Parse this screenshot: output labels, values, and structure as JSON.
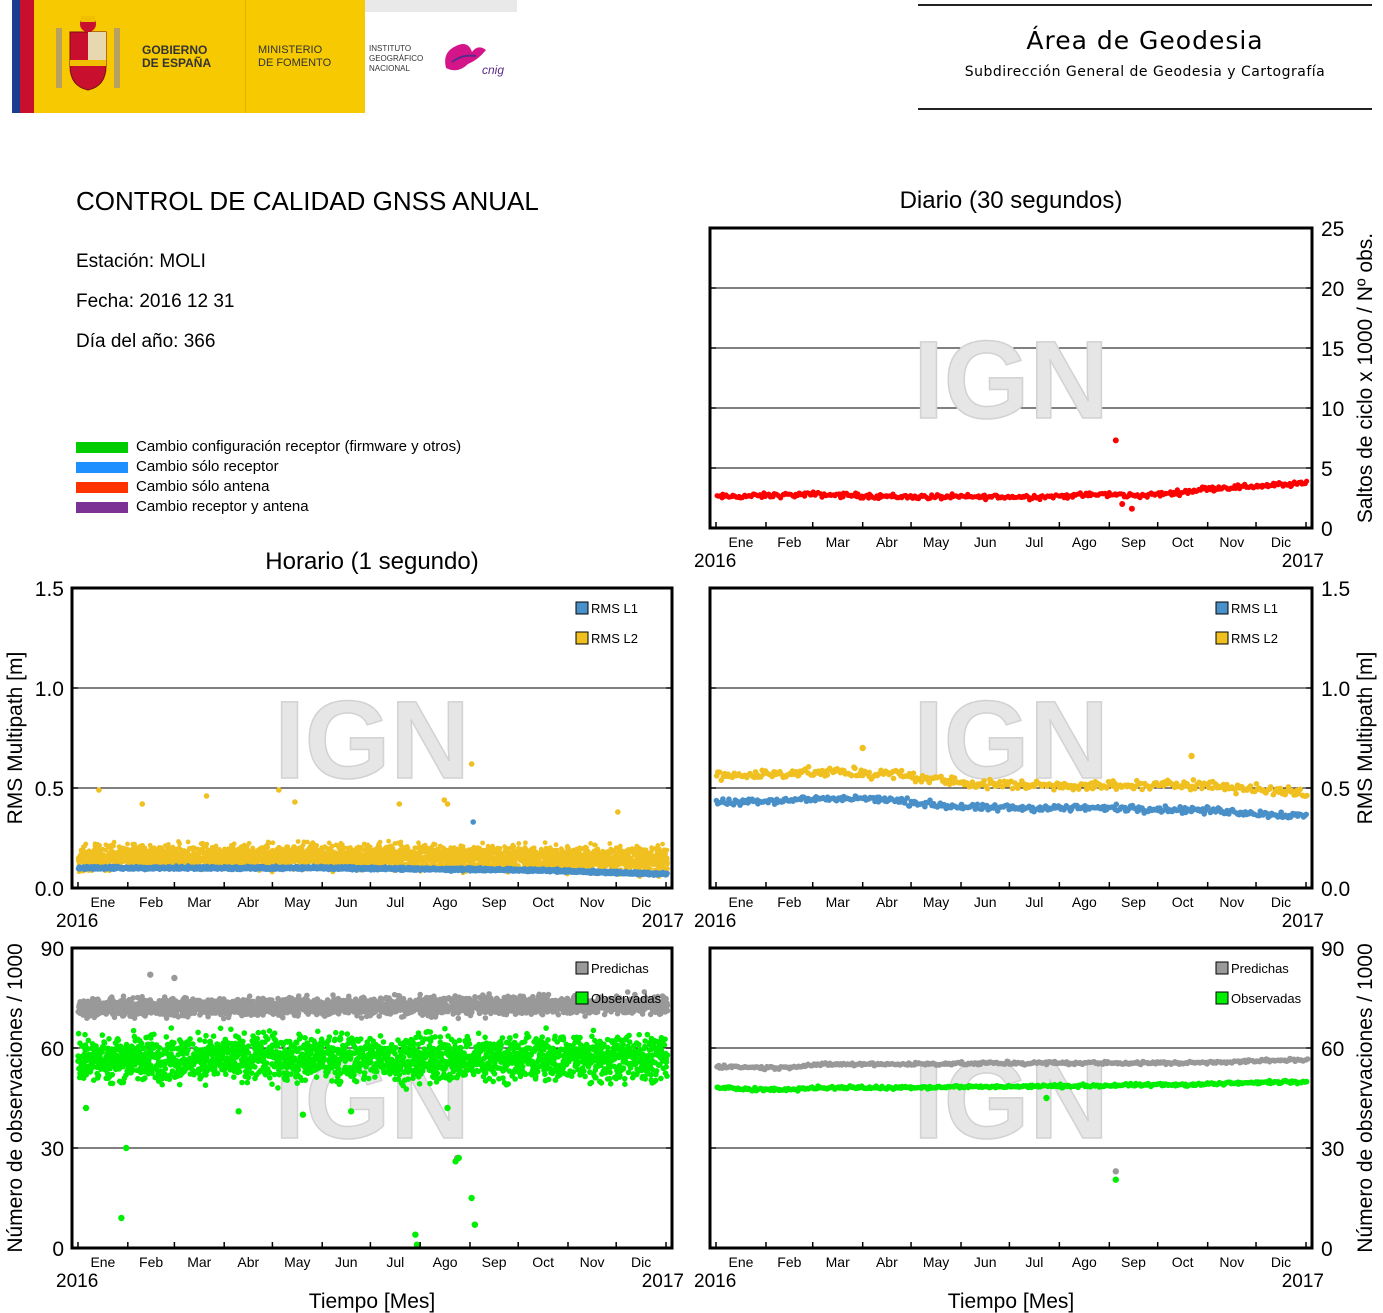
{
  "header": {
    "gobierno": "GOBIERNO\nDE ESPAÑA",
    "ministerio": "MINISTERIO\nDE FOMENTO",
    "instituto": "INSTITUTO\nGEOGRÁFICO\nNACIONAL",
    "area_title": "Área de Geodesia",
    "area_subtitle": "Subdirección General de Geodesia y Cartografía"
  },
  "info": {
    "title": "CONTROL DE CALIDAD GNSS ANUAL",
    "station": "Estación: MOLI",
    "date": "Fecha: 2016 12 31",
    "doy": "Día del año: 366"
  },
  "legend": [
    {
      "label": "Cambio configuración receptor (firmware y otros)",
      "color": "#00cc00"
    },
    {
      "label": "Cambio sólo receptor",
      "color": "#1e90ff"
    },
    {
      "label": "Cambio sólo antena",
      "color": "#ff3300"
    },
    {
      "label": "Cambio receptor y antena",
      "color": "#7b3294"
    }
  ],
  "sections": {
    "diario": "Diario (30 segundos)",
    "horario": "Horario (1 segundo)"
  },
  "chart_data": [
    {
      "id": "cycle_slips",
      "type": "scatter",
      "title": "Diario (30 segundos)",
      "months": [
        "Ene",
        "Feb",
        "Mar",
        "Abr",
        "May",
        "Jun",
        "Jul",
        "Ago",
        "Sep",
        "Oct",
        "Nov",
        "Dic"
      ],
      "x_start": "2016",
      "x_end": "2017",
      "ylabel": "Saltos de ciclo x 1000 / Nº obs.",
      "ylim": [
        0,
        25
      ],
      "yticks": [
        0,
        5,
        10,
        15,
        20,
        25
      ],
      "yaxis": "right",
      "grid": true,
      "series": [
        {
          "color": "#ff0000",
          "profile": [
            [
              0,
              2.6
            ],
            [
              60,
              2.8
            ],
            [
              120,
              2.6
            ],
            [
              200,
              2.6
            ],
            [
              240,
              2.8
            ],
            [
              265,
              2.7
            ],
            [
              290,
              3.0
            ],
            [
              305,
              3.3
            ],
            [
              366,
              3.7
            ]
          ],
          "spread": 0.3,
          "outliers": [
            [
              248,
              7.3
            ],
            [
              252,
              2.0
            ],
            [
              258,
              1.6
            ]
          ]
        }
      ]
    },
    {
      "id": "multipath_1s",
      "type": "scatter",
      "months": [
        "Ene",
        "Feb",
        "Mar",
        "Abr",
        "May",
        "Jun",
        "Jul",
        "Ago",
        "Sep",
        "Oct",
        "Nov",
        "Dic"
      ],
      "x_start": "2016",
      "x_end": "2017",
      "ylabel": "RMS Multipath [m]",
      "ylim": [
        0,
        1.5
      ],
      "yticks": [
        "0.0",
        "0.5",
        "1.0",
        "1.5"
      ],
      "yaxis": "left",
      "grid": true,
      "series": [
        {
          "name": "RMS L2",
          "color": "#f0c020",
          "profile": [
            [
              0,
              0.15
            ],
            [
              150,
              0.16
            ],
            [
              280,
              0.15
            ],
            [
              366,
              0.14
            ]
          ],
          "spread": 0.09,
          "outliers": [
            [
              13,
              0.49
            ],
            [
              40,
              0.42
            ],
            [
              80,
              0.46
            ],
            [
              125,
              0.49
            ],
            [
              135,
              0.43
            ],
            [
              200,
              0.42
            ],
            [
              228,
              0.44
            ],
            [
              230,
              0.42
            ],
            [
              245,
              0.62
            ],
            [
              336,
              0.38
            ]
          ]
        },
        {
          "name": "RMS L1",
          "color": "#4a90c8",
          "profile": [
            [
              0,
              0.1
            ],
            [
              150,
              0.1
            ],
            [
              280,
              0.09
            ],
            [
              366,
              0.07
            ]
          ],
          "spread": 0.012,
          "outliers": [
            [
              246,
              0.33
            ]
          ]
        }
      ]
    },
    {
      "id": "multipath_30s",
      "type": "scatter",
      "months": [
        "Ene",
        "Feb",
        "Mar",
        "Abr",
        "May",
        "Jun",
        "Jul",
        "Ago",
        "Sep",
        "Oct",
        "Nov",
        "Dic"
      ],
      "x_start": "2016",
      "x_end": "2017",
      "ylabel": "RMS Multipath [m]",
      "ylim": [
        0,
        1.5
      ],
      "yticks": [
        "0.0",
        "0.5",
        "1.0",
        "1.5"
      ],
      "yaxis": "right",
      "grid": true,
      "series": [
        {
          "name": "RMS L2",
          "color": "#f0c020",
          "profile": [
            [
              0,
              0.56
            ],
            [
              60,
              0.58
            ],
            [
              110,
              0.57
            ],
            [
              160,
              0.52
            ],
            [
              250,
              0.51
            ],
            [
              300,
              0.52
            ],
            [
              366,
              0.47
            ]
          ],
          "spread": 0.035,
          "outliers": [
            [
              91,
              0.7
            ],
            [
              295,
              0.66
            ]
          ]
        },
        {
          "name": "RMS L1",
          "color": "#4a90c8",
          "profile": [
            [
              0,
              0.43
            ],
            [
              90,
              0.45
            ],
            [
              160,
              0.4
            ],
            [
              250,
              0.4
            ],
            [
              300,
              0.39
            ],
            [
              366,
              0.36
            ]
          ],
          "spread": 0.025,
          "outliers": []
        }
      ]
    },
    {
      "id": "obs_1s",
      "type": "scatter",
      "months": [
        "Ene",
        "Feb",
        "Mar",
        "Abr",
        "May",
        "Jun",
        "Jul",
        "Ago",
        "Sep",
        "Oct",
        "Nov",
        "Dic"
      ],
      "x_start": "2016",
      "x_end": "2017",
      "xlabel": "Tiempo [Mes]",
      "ylabel": "Número de observaciones / 1000",
      "ylim": [
        0,
        90
      ],
      "yticks": [
        0,
        30,
        60,
        90
      ],
      "yaxis": "left",
      "grid": true,
      "series": [
        {
          "name": "Predichas",
          "color": "#999999",
          "profile": [
            [
              0,
              72
            ],
            [
              366,
              73
            ]
          ],
          "spread": 4,
          "outliers": [
            [
              45,
              82
            ],
            [
              60,
              81
            ],
            [
              236,
              27
            ],
            [
              247,
              7
            ]
          ]
        },
        {
          "name": "Observadas",
          "color": "#00ee00",
          "profile": [
            [
              0,
              57
            ],
            [
              366,
              57
            ]
          ],
          "spread": 10,
          "outliers": [
            [
              27,
              9
            ],
            [
              30,
              30
            ],
            [
              210,
              4
            ],
            [
              211,
              1
            ],
            [
              235,
              26
            ],
            [
              237,
              27
            ],
            [
              245,
              15
            ],
            [
              247,
              7
            ],
            [
              5,
              42
            ],
            [
              100,
              41
            ],
            [
              140,
              40
            ],
            [
              170,
              41
            ],
            [
              230,
              42
            ]
          ]
        }
      ]
    },
    {
      "id": "obs_30s",
      "type": "scatter",
      "months": [
        "Ene",
        "Feb",
        "Mar",
        "Abr",
        "May",
        "Jun",
        "Jul",
        "Ago",
        "Sep",
        "Oct",
        "Nov",
        "Dic"
      ],
      "x_start": "2016",
      "x_end": "2017",
      "xlabel": "Tiempo [Mes]",
      "ylabel": "Número de observaciones / 1000",
      "ylim": [
        0,
        90
      ],
      "yticks": [
        0,
        30,
        60,
        90
      ],
      "yaxis": "right",
      "grid": true,
      "series": [
        {
          "name": "Predichas",
          "color": "#999999",
          "profile": [
            [
              0,
              54.5
            ],
            [
              40,
              54
            ],
            [
              60,
              55
            ],
            [
              200,
              55.5
            ],
            [
              290,
              55.5
            ],
            [
              366,
              56.5
            ]
          ],
          "spread": 0.7,
          "outliers": [
            [
              248,
              23
            ]
          ]
        },
        {
          "name": "Observadas",
          "color": "#00ee00",
          "profile": [
            [
              0,
              48
            ],
            [
              40,
              47.5
            ],
            [
              60,
              48
            ],
            [
              200,
              48.5
            ],
            [
              290,
              49
            ],
            [
              366,
              50
            ]
          ],
          "spread": 0.7,
          "outliers": [
            [
              205,
              45
            ],
            [
              248,
              20.5
            ]
          ]
        }
      ]
    }
  ],
  "watermark": "IGN"
}
